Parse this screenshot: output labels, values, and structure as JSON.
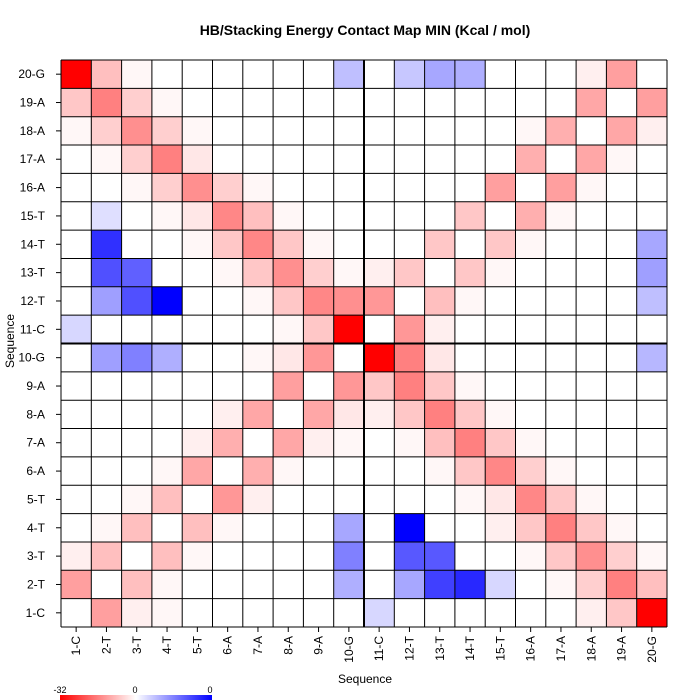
{
  "chart_data": {
    "type": "heatmap",
    "title": "HB/Stacking Energy Contact Map MIN (Kcal / mol)",
    "xlabel": "Sequence",
    "ylabel": "Sequence",
    "labels": [
      "1-C",
      "2-T",
      "3-T",
      "4-T",
      "5-T",
      "6-A",
      "7-A",
      "8-A",
      "9-A",
      "10-G",
      "11-C",
      "12-T",
      "13-T",
      "14-T",
      "15-T",
      "16-A",
      "17-A",
      "18-A",
      "19-A",
      "20-G"
    ],
    "divider_after_index": 10,
    "color_scale": {
      "min": -32,
      "mid": 0,
      "max": 0,
      "low_color": "#ff0000",
      "mid_color": "#ffffff",
      "high_color": "#0000ff"
    },
    "colorbar_labels": [
      "-32",
      "0",
      "0"
    ],
    "note": "",
    "cells": [
      {
        "row": "20-G",
        "col": "1-C",
        "value": -32,
        "tone": "red"
      },
      {
        "row": "20-G",
        "col": "2-T",
        "value": -8,
        "tone": "red"
      },
      {
        "row": "20-G",
        "col": "3-T",
        "value": -1,
        "tone": "red"
      },
      {
        "row": "20-G",
        "col": "10-G",
        "value": -8,
        "tone": "blue"
      },
      {
        "row": "20-G",
        "col": "12-T",
        "value": -7,
        "tone": "blue"
      },
      {
        "row": "20-G",
        "col": "13-T",
        "value": -11,
        "tone": "blue"
      },
      {
        "row": "20-G",
        "col": "14-T",
        "value": -10,
        "tone": "blue"
      },
      {
        "row": "20-G",
        "col": "18-A",
        "value": -2,
        "tone": "red"
      },
      {
        "row": "20-G",
        "col": "19-A",
        "value": -12,
        "tone": "red"
      },
      {
        "row": "19-A",
        "col": "1-C",
        "value": -7,
        "tone": "red"
      },
      {
        "row": "19-A",
        "col": "2-T",
        "value": -16,
        "tone": "red"
      },
      {
        "row": "19-A",
        "col": "3-T",
        "value": -6,
        "tone": "red"
      },
      {
        "row": "19-A",
        "col": "4-T",
        "value": -1,
        "tone": "red"
      },
      {
        "row": "19-A",
        "col": "18-A",
        "value": -11,
        "tone": "red"
      },
      {
        "row": "19-A",
        "col": "20-G",
        "value": -12,
        "tone": "red"
      },
      {
        "row": "18-A",
        "col": "1-C",
        "value": -1,
        "tone": "red"
      },
      {
        "row": "18-A",
        "col": "2-T",
        "value": -6,
        "tone": "red"
      },
      {
        "row": "18-A",
        "col": "3-T",
        "value": -14,
        "tone": "red"
      },
      {
        "row": "18-A",
        "col": "4-T",
        "value": -6,
        "tone": "red"
      },
      {
        "row": "18-A",
        "col": "5-T",
        "value": -1,
        "tone": "red"
      },
      {
        "row": "18-A",
        "col": "16-A",
        "value": -1,
        "tone": "red"
      },
      {
        "row": "18-A",
        "col": "17-A",
        "value": -10,
        "tone": "red"
      },
      {
        "row": "18-A",
        "col": "19-A",
        "value": -11,
        "tone": "red"
      },
      {
        "row": "18-A",
        "col": "20-G",
        "value": -2,
        "tone": "red"
      },
      {
        "row": "17-A",
        "col": "2-T",
        "value": -1,
        "tone": "red"
      },
      {
        "row": "17-A",
        "col": "3-T",
        "value": -6,
        "tone": "red"
      },
      {
        "row": "17-A",
        "col": "4-T",
        "value": -16,
        "tone": "red"
      },
      {
        "row": "17-A",
        "col": "5-T",
        "value": -3,
        "tone": "red"
      },
      {
        "row": "17-A",
        "col": "16-A",
        "value": -10,
        "tone": "red"
      },
      {
        "row": "17-A",
        "col": "18-A",
        "value": -11,
        "tone": "red"
      },
      {
        "row": "17-A",
        "col": "19-A",
        "value": -1,
        "tone": "red"
      },
      {
        "row": "16-A",
        "col": "3-T",
        "value": -1,
        "tone": "red"
      },
      {
        "row": "16-A",
        "col": "4-T",
        "value": -6,
        "tone": "red"
      },
      {
        "row": "16-A",
        "col": "5-T",
        "value": -14,
        "tone": "red"
      },
      {
        "row": "16-A",
        "col": "6-A",
        "value": -6,
        "tone": "red"
      },
      {
        "row": "16-A",
        "col": "7-A",
        "value": -1,
        "tone": "red"
      },
      {
        "row": "16-A",
        "col": "15-T",
        "value": -12,
        "tone": "red"
      },
      {
        "row": "16-A",
        "col": "17-A",
        "value": -12,
        "tone": "red"
      },
      {
        "row": "16-A",
        "col": "18-A",
        "value": -1,
        "tone": "red"
      },
      {
        "row": "15-T",
        "col": "2-T",
        "value": -4,
        "tone": "blue"
      },
      {
        "row": "15-T",
        "col": "4-T",
        "value": -1,
        "tone": "red"
      },
      {
        "row": "15-T",
        "col": "5-T",
        "value": -3,
        "tone": "red"
      },
      {
        "row": "15-T",
        "col": "6-A",
        "value": -15,
        "tone": "red"
      },
      {
        "row": "15-T",
        "col": "7-A",
        "value": -8,
        "tone": "red"
      },
      {
        "row": "15-T",
        "col": "8-A",
        "value": -1,
        "tone": "red"
      },
      {
        "row": "15-T",
        "col": "14-T",
        "value": -7,
        "tone": "red"
      },
      {
        "row": "15-T",
        "col": "16-A",
        "value": -10,
        "tone": "red"
      },
      {
        "row": "15-T",
        "col": "17-A",
        "value": -1,
        "tone": "red"
      },
      {
        "row": "14-T",
        "col": "2-T",
        "value": -26,
        "tone": "blue"
      },
      {
        "row": "14-T",
        "col": "5-T",
        "value": -1,
        "tone": "red"
      },
      {
        "row": "14-T",
        "col": "6-A",
        "value": -7,
        "tone": "red"
      },
      {
        "row": "14-T",
        "col": "7-A",
        "value": -15,
        "tone": "red"
      },
      {
        "row": "14-T",
        "col": "8-A",
        "value": -7,
        "tone": "red"
      },
      {
        "row": "14-T",
        "col": "9-A",
        "value": -1,
        "tone": "red"
      },
      {
        "row": "14-T",
        "col": "13-T",
        "value": -7,
        "tone": "red"
      },
      {
        "row": "14-T",
        "col": "15-T",
        "value": -7,
        "tone": "red"
      },
      {
        "row": "14-T",
        "col": "16-A",
        "value": -1,
        "tone": "red"
      },
      {
        "row": "14-T",
        "col": "20-G",
        "value": -11,
        "tone": "blue"
      },
      {
        "row": "13-T",
        "col": "2-T",
        "value": -22,
        "tone": "blue"
      },
      {
        "row": "13-T",
        "col": "3-T",
        "value": -20,
        "tone": "blue"
      },
      {
        "row": "13-T",
        "col": "6-A",
        "value": -1,
        "tone": "red"
      },
      {
        "row": "13-T",
        "col": "7-A",
        "value": -7,
        "tone": "red"
      },
      {
        "row": "13-T",
        "col": "8-A",
        "value": -14,
        "tone": "red"
      },
      {
        "row": "13-T",
        "col": "9-A",
        "value": -6,
        "tone": "red"
      },
      {
        "row": "13-T",
        "col": "10-G",
        "value": -1,
        "tone": "red"
      },
      {
        "row": "13-T",
        "col": "11-C",
        "value": -2,
        "tone": "red"
      },
      {
        "row": "13-T",
        "col": "12-T",
        "value": -7,
        "tone": "red"
      },
      {
        "row": "13-T",
        "col": "14-T",
        "value": -7,
        "tone": "red"
      },
      {
        "row": "13-T",
        "col": "15-T",
        "value": -1,
        "tone": "red"
      },
      {
        "row": "13-T",
        "col": "20-G",
        "value": -12,
        "tone": "blue"
      },
      {
        "row": "12-T",
        "col": "2-T",
        "value": -12,
        "tone": "blue"
      },
      {
        "row": "12-T",
        "col": "3-T",
        "value": -22,
        "tone": "blue"
      },
      {
        "row": "12-T",
        "col": "4-T",
        "value": -32,
        "tone": "blue"
      },
      {
        "row": "12-T",
        "col": "7-A",
        "value": -1,
        "tone": "red"
      },
      {
        "row": "12-T",
        "col": "8-A",
        "value": -7,
        "tone": "red"
      },
      {
        "row": "12-T",
        "col": "9-A",
        "value": -15,
        "tone": "red"
      },
      {
        "row": "12-T",
        "col": "10-G",
        "value": -14,
        "tone": "red"
      },
      {
        "row": "12-T",
        "col": "11-C",
        "value": -13,
        "tone": "red"
      },
      {
        "row": "12-T",
        "col": "13-T",
        "value": -8,
        "tone": "red"
      },
      {
        "row": "12-T",
        "col": "14-T",
        "value": -1,
        "tone": "red"
      },
      {
        "row": "12-T",
        "col": "20-G",
        "value": -8,
        "tone": "blue"
      },
      {
        "row": "11-C",
        "col": "1-C",
        "value": -5,
        "tone": "blue"
      },
      {
        "row": "11-C",
        "col": "8-A",
        "value": -1,
        "tone": "red"
      },
      {
        "row": "11-C",
        "col": "9-A",
        "value": -7,
        "tone": "red"
      },
      {
        "row": "11-C",
        "col": "10-G",
        "value": -32,
        "tone": "red"
      },
      {
        "row": "11-C",
        "col": "12-T",
        "value": -13,
        "tone": "red"
      },
      {
        "row": "11-C",
        "col": "13-T",
        "value": -2,
        "tone": "red"
      },
      {
        "row": "10-G",
        "col": "2-T",
        "value": -12,
        "tone": "blue"
      },
      {
        "row": "10-G",
        "col": "3-T",
        "value": -16,
        "tone": "blue"
      },
      {
        "row": "10-G",
        "col": "4-T",
        "value": -10,
        "tone": "blue"
      },
      {
        "row": "10-G",
        "col": "7-A",
        "value": -1,
        "tone": "red"
      },
      {
        "row": "10-G",
        "col": "8-A",
        "value": -3,
        "tone": "red"
      },
      {
        "row": "10-G",
        "col": "9-A",
        "value": -13,
        "tone": "red"
      },
      {
        "row": "10-G",
        "col": "11-C",
        "value": -32,
        "tone": "red"
      },
      {
        "row": "10-G",
        "col": "12-T",
        "value": -16,
        "tone": "red"
      },
      {
        "row": "10-G",
        "col": "13-T",
        "value": -3,
        "tone": "red"
      },
      {
        "row": "10-G",
        "col": "20-G",
        "value": -9,
        "tone": "blue"
      },
      {
        "row": "9-A",
        "col": "8-A",
        "value": -12,
        "tone": "red"
      },
      {
        "row": "9-A",
        "col": "10-G",
        "value": -13,
        "tone": "red"
      },
      {
        "row": "9-A",
        "col": "11-C",
        "value": -7,
        "tone": "red"
      },
      {
        "row": "9-A",
        "col": "12-T",
        "value": -16,
        "tone": "red"
      },
      {
        "row": "9-A",
        "col": "13-T",
        "value": -7,
        "tone": "red"
      },
      {
        "row": "9-A",
        "col": "14-T",
        "value": -1,
        "tone": "red"
      },
      {
        "row": "8-A",
        "col": "6-A",
        "value": -2,
        "tone": "red"
      },
      {
        "row": "8-A",
        "col": "7-A",
        "value": -11,
        "tone": "red"
      },
      {
        "row": "8-A",
        "col": "9-A",
        "value": -11,
        "tone": "red"
      },
      {
        "row": "8-A",
        "col": "10-G",
        "value": -3,
        "tone": "red"
      },
      {
        "row": "8-A",
        "col": "11-C",
        "value": -2,
        "tone": "red"
      },
      {
        "row": "8-A",
        "col": "12-T",
        "value": -7,
        "tone": "red"
      },
      {
        "row": "8-A",
        "col": "13-T",
        "value": -16,
        "tone": "red"
      },
      {
        "row": "8-A",
        "col": "14-T",
        "value": -7,
        "tone": "red"
      },
      {
        "row": "8-A",
        "col": "15-T",
        "value": -1,
        "tone": "red"
      },
      {
        "row": "7-A",
        "col": "5-T",
        "value": -2,
        "tone": "red"
      },
      {
        "row": "7-A",
        "col": "6-A",
        "value": -10,
        "tone": "red"
      },
      {
        "row": "7-A",
        "col": "8-A",
        "value": -11,
        "tone": "red"
      },
      {
        "row": "7-A",
        "col": "9-A",
        "value": -2,
        "tone": "red"
      },
      {
        "row": "7-A",
        "col": "10-G",
        "value": -1,
        "tone": "red"
      },
      {
        "row": "7-A",
        "col": "12-T",
        "value": -1,
        "tone": "red"
      },
      {
        "row": "7-A",
        "col": "13-T",
        "value": -8,
        "tone": "red"
      },
      {
        "row": "7-A",
        "col": "14-T",
        "value": -16,
        "tone": "red"
      },
      {
        "row": "7-A",
        "col": "15-T",
        "value": -7,
        "tone": "red"
      },
      {
        "row": "7-A",
        "col": "16-A",
        "value": -1,
        "tone": "red"
      },
      {
        "row": "6-A",
        "col": "4-T",
        "value": -1,
        "tone": "red"
      },
      {
        "row": "6-A",
        "col": "5-T",
        "value": -11,
        "tone": "red"
      },
      {
        "row": "6-A",
        "col": "7-A",
        "value": -10,
        "tone": "red"
      },
      {
        "row": "6-A",
        "col": "8-A",
        "value": -1,
        "tone": "red"
      },
      {
        "row": "6-A",
        "col": "13-T",
        "value": -1,
        "tone": "red"
      },
      {
        "row": "6-A",
        "col": "14-T",
        "value": -7,
        "tone": "red"
      },
      {
        "row": "6-A",
        "col": "15-T",
        "value": -15,
        "tone": "red"
      },
      {
        "row": "6-A",
        "col": "16-A",
        "value": -6,
        "tone": "red"
      },
      {
        "row": "6-A",
        "col": "17-A",
        "value": -1,
        "tone": "red"
      },
      {
        "row": "5-T",
        "col": "3-T",
        "value": -1,
        "tone": "red"
      },
      {
        "row": "5-T",
        "col": "4-T",
        "value": -8,
        "tone": "red"
      },
      {
        "row": "5-T",
        "col": "6-A",
        "value": -13,
        "tone": "red"
      },
      {
        "row": "5-T",
        "col": "7-A",
        "value": -2,
        "tone": "red"
      },
      {
        "row": "5-T",
        "col": "14-T",
        "value": -1,
        "tone": "red"
      },
      {
        "row": "5-T",
        "col": "15-T",
        "value": -3,
        "tone": "red"
      },
      {
        "row": "5-T",
        "col": "16-A",
        "value": -15,
        "tone": "red"
      },
      {
        "row": "5-T",
        "col": "17-A",
        "value": -7,
        "tone": "red"
      },
      {
        "row": "5-T",
        "col": "18-A",
        "value": -1,
        "tone": "red"
      },
      {
        "row": "4-T",
        "col": "2-T",
        "value": -1,
        "tone": "red"
      },
      {
        "row": "4-T",
        "col": "3-T",
        "value": -8,
        "tone": "red"
      },
      {
        "row": "4-T",
        "col": "5-T",
        "value": -8,
        "tone": "red"
      },
      {
        "row": "4-T",
        "col": "6-A",
        "value": -1,
        "tone": "red"
      },
      {
        "row": "4-T",
        "col": "10-G",
        "value": -11,
        "tone": "blue"
      },
      {
        "row": "4-T",
        "col": "12-T",
        "value": -32,
        "tone": "blue"
      },
      {
        "row": "4-T",
        "col": "15-T",
        "value": -2,
        "tone": "red"
      },
      {
        "row": "4-T",
        "col": "16-A",
        "value": -7,
        "tone": "red"
      },
      {
        "row": "4-T",
        "col": "17-A",
        "value": -16,
        "tone": "red"
      },
      {
        "row": "4-T",
        "col": "18-A",
        "value": -7,
        "tone": "red"
      },
      {
        "row": "4-T",
        "col": "19-A",
        "value": -1,
        "tone": "red"
      },
      {
        "row": "3-T",
        "col": "1-C",
        "value": -2,
        "tone": "red"
      },
      {
        "row": "3-T",
        "col": "2-T",
        "value": -8,
        "tone": "red"
      },
      {
        "row": "3-T",
        "col": "4-T",
        "value": -8,
        "tone": "red"
      },
      {
        "row": "3-T",
        "col": "5-T",
        "value": -1,
        "tone": "red"
      },
      {
        "row": "3-T",
        "col": "10-G",
        "value": -16,
        "tone": "blue"
      },
      {
        "row": "3-T",
        "col": "12-T",
        "value": -21,
        "tone": "blue"
      },
      {
        "row": "3-T",
        "col": "13-T",
        "value": -21,
        "tone": "blue"
      },
      {
        "row": "3-T",
        "col": "16-A",
        "value": -1,
        "tone": "red"
      },
      {
        "row": "3-T",
        "col": "17-A",
        "value": -7,
        "tone": "red"
      },
      {
        "row": "3-T",
        "col": "18-A",
        "value": -14,
        "tone": "red"
      },
      {
        "row": "3-T",
        "col": "19-A",
        "value": -6,
        "tone": "red"
      },
      {
        "row": "3-T",
        "col": "20-G",
        "value": -1,
        "tone": "red"
      },
      {
        "row": "2-T",
        "col": "1-C",
        "value": -12,
        "tone": "red"
      },
      {
        "row": "2-T",
        "col": "3-T",
        "value": -8,
        "tone": "red"
      },
      {
        "row": "2-T",
        "col": "4-T",
        "value": -1,
        "tone": "red"
      },
      {
        "row": "2-T",
        "col": "10-G",
        "value": -10,
        "tone": "blue"
      },
      {
        "row": "2-T",
        "col": "12-T",
        "value": -11,
        "tone": "blue"
      },
      {
        "row": "2-T",
        "col": "13-T",
        "value": -24,
        "tone": "blue"
      },
      {
        "row": "2-T",
        "col": "14-T",
        "value": -27,
        "tone": "blue"
      },
      {
        "row": "2-T",
        "col": "15-T",
        "value": -5,
        "tone": "blue"
      },
      {
        "row": "2-T",
        "col": "17-A",
        "value": -1,
        "tone": "red"
      },
      {
        "row": "2-T",
        "col": "18-A",
        "value": -6,
        "tone": "red"
      },
      {
        "row": "2-T",
        "col": "19-A",
        "value": -16,
        "tone": "red"
      },
      {
        "row": "2-T",
        "col": "20-G",
        "value": -8,
        "tone": "red"
      },
      {
        "row": "1-C",
        "col": "2-T",
        "value": -12,
        "tone": "red"
      },
      {
        "row": "1-C",
        "col": "3-T",
        "value": -2,
        "tone": "red"
      },
      {
        "row": "1-C",
        "col": "4-T",
        "value": -1,
        "tone": "red"
      },
      {
        "row": "1-C",
        "col": "11-C",
        "value": -5,
        "tone": "blue"
      },
      {
        "row": "1-C",
        "col": "18-A",
        "value": -2,
        "tone": "red"
      },
      {
        "row": "1-C",
        "col": "19-A",
        "value": -7,
        "tone": "red"
      },
      {
        "row": "1-C",
        "col": "20-G",
        "value": -32,
        "tone": "red"
      }
    ]
  }
}
